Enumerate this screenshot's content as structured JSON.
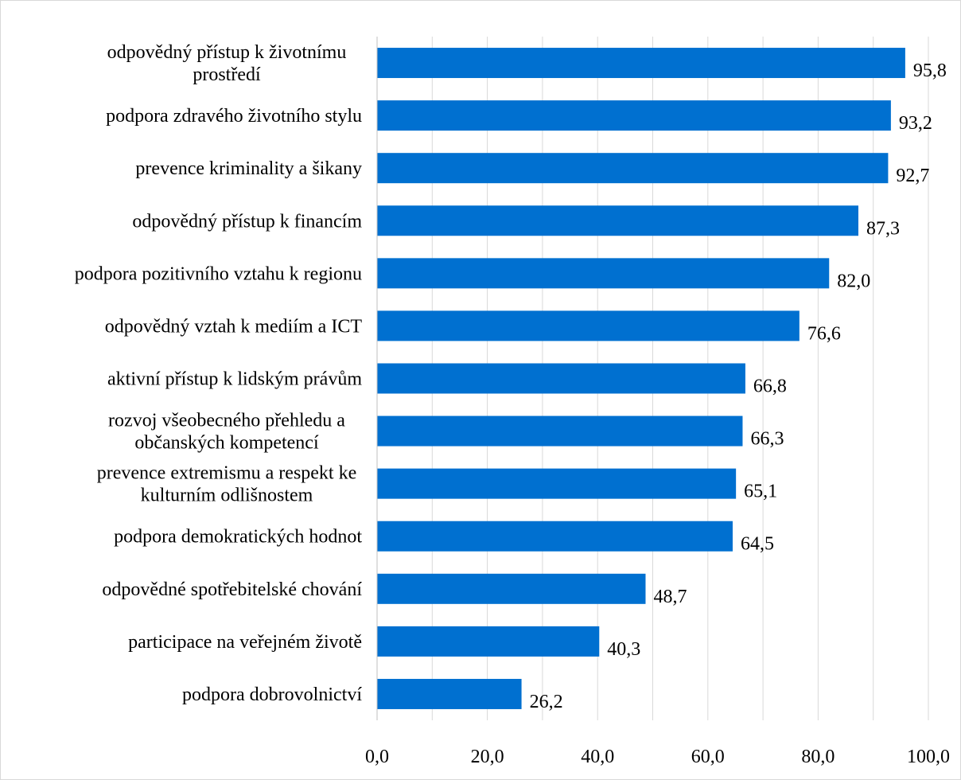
{
  "chart_data": {
    "type": "bar",
    "orientation": "horizontal",
    "categories": [
      "odpovědný přístup k životnímu prostředí",
      "podpora zdravého životního stylu",
      "prevence kriminality a šikany",
      "odpovědný přístup k financím",
      "podpora pozitivního vztahu k regionu",
      "odpovědný vztah k mediím a ICT",
      "aktivní přístup k lidským právům",
      "rozvoj všeobecného přehledu a občanských kompetencí",
      "prevence extremismu a respekt ke kulturním odlišnostem",
      "podpora demokratických hodnot",
      "odpovědné spotřebitelské chování",
      "participace na veřejném životě",
      "podpora dobrovolnictví"
    ],
    "category_lines": [
      [
        "odpovědný přístup k životnímu",
        "prostředí"
      ],
      [
        "podpora zdravého životního stylu"
      ],
      [
        "prevence kriminality a šikany"
      ],
      [
        "odpovědný přístup k financím"
      ],
      [
        "podpora pozitivního vztahu k regionu"
      ],
      [
        "odpovědný vztah k mediím a ICT"
      ],
      [
        "aktivní přístup k lidským právům"
      ],
      [
        "rozvoj všeobecného přehledu a",
        "občanských kompetencí"
      ],
      [
        "prevence extremismu a respekt ke",
        "kulturním odlišnostem"
      ],
      [
        "podpora demokratických hodnot"
      ],
      [
        "odpovědné spotřebitelské chování"
      ],
      [
        "participace na veřejném životě"
      ],
      [
        "podpora dobrovolnictví"
      ]
    ],
    "values": [
      95.8,
      93.2,
      92.7,
      87.3,
      82.0,
      76.6,
      66.8,
      66.3,
      65.1,
      64.5,
      48.7,
      40.3,
      26.2
    ],
    "value_labels": [
      "95,8",
      "93,2",
      "92,7",
      "87,3",
      "82,0",
      "76,6",
      "66,8",
      "66,3",
      "65,1",
      "64,5",
      "48,7",
      "40,3",
      "26,2"
    ],
    "xlim": [
      0,
      100
    ],
    "x_ticks": [
      0,
      20,
      40,
      60,
      80,
      100
    ],
    "x_tick_labels": [
      "0,0",
      "20,0",
      "40,0",
      "60,0",
      "80,0",
      "100,0"
    ],
    "grid": true,
    "colors": {
      "bar": "#0070D0",
      "gridline": "#d9d9d9",
      "axis": "#bfbfbf",
      "border": "#d9d9d9"
    }
  }
}
